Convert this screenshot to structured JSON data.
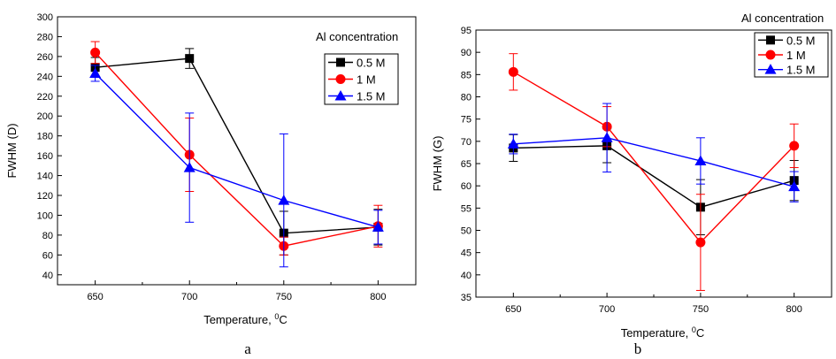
{
  "chart_data": [
    {
      "type": "line",
      "panel_label": "a",
      "legend_title": "Al concentration",
      "legend_position": "top-right",
      "xlabel": "Temperature, ",
      "xlabel_sup": "0",
      "xlabel_unit": "C",
      "ylabel": "FWHM (D)",
      "xlim": [
        630,
        820
      ],
      "ylim": [
        30,
        300
      ],
      "x_ticks": [
        650,
        700,
        750,
        800
      ],
      "y_ticks": [
        40,
        60,
        80,
        100,
        120,
        140,
        160,
        180,
        200,
        220,
        240,
        260,
        280,
        300
      ],
      "grid": false,
      "x": [
        650,
        700,
        750,
        800
      ],
      "series": [
        {
          "name": "0.5 M",
          "color": "#000000",
          "marker": "square",
          "values": [
            249,
            258,
            82,
            88
          ],
          "errors": [
            10,
            10,
            22,
            18
          ]
        },
        {
          "name": "1 M",
          "color": "#ff0000",
          "marker": "circle",
          "values": [
            264,
            161,
            69,
            89
          ],
          "errors": [
            11,
            37,
            9,
            21
          ]
        },
        {
          "name": "1.5 M",
          "color": "#0000ff",
          "marker": "triangle",
          "values": [
            243,
            148,
            115,
            88
          ],
          "errors": [
            8,
            55,
            67,
            17
          ]
        }
      ]
    },
    {
      "type": "line",
      "panel_label": "b",
      "legend_title": "Al concentration",
      "legend_position": "top-right",
      "xlabel": "Temperature, ",
      "xlabel_sup": "0",
      "xlabel_unit": "C",
      "ylabel": "FWHM (G)",
      "xlim": [
        630,
        820
      ],
      "ylim": [
        35,
        95
      ],
      "x_ticks": [
        650,
        700,
        750,
        800
      ],
      "y_ticks": [
        35,
        40,
        45,
        50,
        55,
        60,
        65,
        70,
        75,
        80,
        85,
        90,
        95
      ],
      "grid": false,
      "x": [
        650,
        700,
        750,
        800
      ],
      "series": [
        {
          "name": "0.5 M",
          "color": "#000000",
          "marker": "square",
          "values": [
            68.5,
            69,
            55.2,
            61.2
          ],
          "errors": [
            3,
            3.8,
            6.2,
            4.5
          ]
        },
        {
          "name": "1 M",
          "color": "#ff0000",
          "marker": "circle",
          "values": [
            85.6,
            73.3,
            47.3,
            69
          ],
          "errors": [
            4.1,
            4.5,
            10.8,
            4.9
          ]
        },
        {
          "name": "1.5 M",
          "color": "#0000ff",
          "marker": "triangle",
          "values": [
            69.4,
            70.8,
            65.6,
            59.8
          ],
          "errors": [
            2.2,
            7.7,
            5.2,
            3.4
          ]
        }
      ]
    }
  ]
}
